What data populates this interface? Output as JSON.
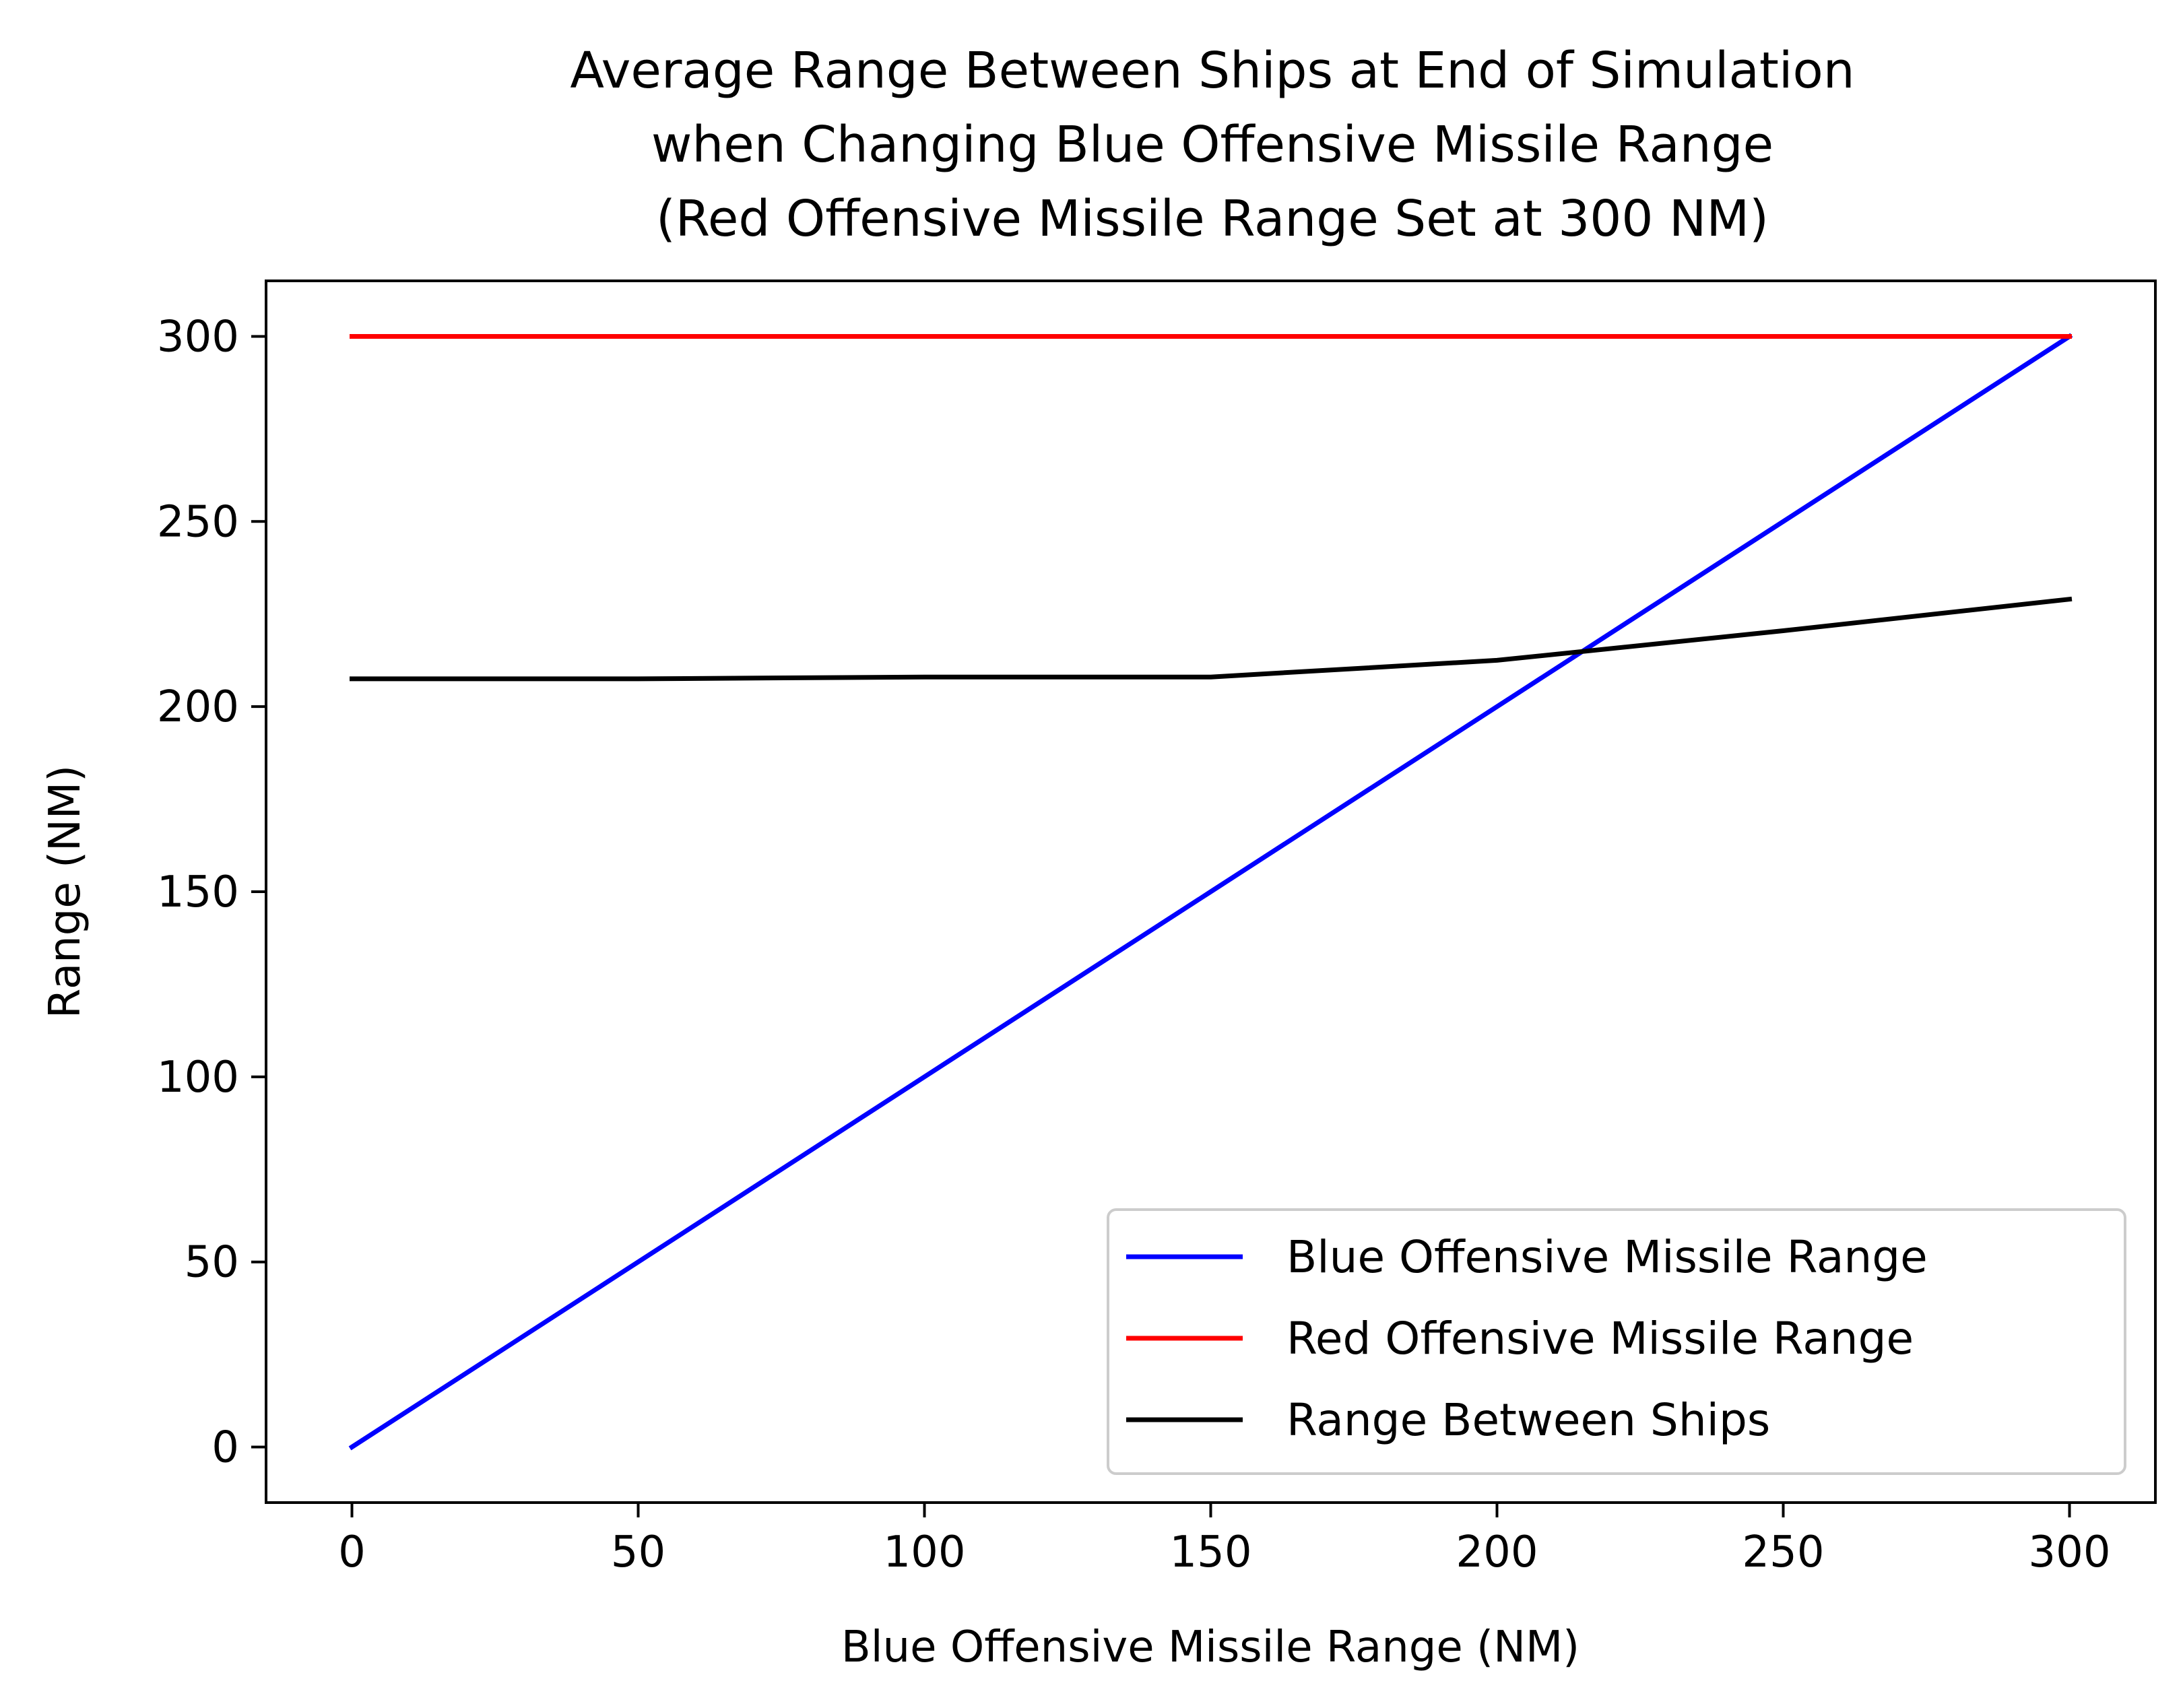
{
  "chart_data": {
    "type": "line",
    "title": [
      "Average Range Between Ships at End of Simulation",
      "when Changing Blue Offensive Missile Range",
      "(Red Offensive Missile Range Set at 300 NM)"
    ],
    "xlabel": "Blue Offensive Missile Range (NM)",
    "ylabel": "Range (NM)",
    "xlim": [
      -15,
      315
    ],
    "ylim": [
      -15,
      315
    ],
    "xticks": [
      0,
      50,
      100,
      150,
      200,
      250,
      300
    ],
    "yticks": [
      0,
      50,
      100,
      150,
      200,
      250,
      300
    ],
    "grid": false,
    "legend_position": "lower-right",
    "series": [
      {
        "name": "Blue Offensive Missile Range",
        "color": "#0000ff",
        "x": [
          0,
          50,
          100,
          150,
          200,
          250,
          300
        ],
        "y": [
          0,
          50,
          100,
          150,
          200,
          250,
          300
        ]
      },
      {
        "name": "Red Offensive Missile Range",
        "color": "#ff0000",
        "x": [
          0,
          50,
          100,
          150,
          200,
          250,
          300
        ],
        "y": [
          300,
          300,
          300,
          300,
          300,
          300,
          300
        ]
      },
      {
        "name": "Range Between Ships",
        "color": "#000000",
        "x": [
          0,
          50,
          100,
          150,
          200,
          250,
          300
        ],
        "y": [
          207.5,
          207.5,
          208,
          208,
          212.5,
          220.5,
          229
        ]
      }
    ]
  }
}
